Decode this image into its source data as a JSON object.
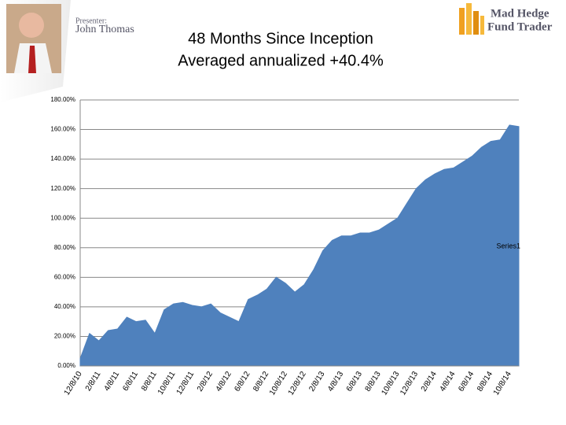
{
  "header": {
    "presenter_label": "Presenter:",
    "presenter_name": "John Thomas",
    "logo_line1": "Mad Hedge",
    "logo_line2": "Fund Trader"
  },
  "chart_data": {
    "type": "area",
    "title": "48 Months Since Inception",
    "subtitle": "Averaged annualized +40.4%",
    "categories": [
      "12/8/10",
      null,
      "2/8/11",
      null,
      "4/8/11",
      null,
      "6/8/11",
      null,
      "8/8/11",
      null,
      "10/8/11",
      null,
      "12/8/11",
      null,
      "2/8/12",
      null,
      "4/8/12",
      null,
      "6/8/12",
      null,
      "8/8/12",
      null,
      "10/8/12",
      null,
      "12/8/12",
      null,
      "2/8/13",
      null,
      "4/8/13",
      null,
      "6/8/13",
      null,
      "8/8/13",
      null,
      "10/8/13",
      null,
      "12/8/13",
      null,
      "2/8/14",
      null,
      "4/8/14",
      null,
      "6/8/14",
      null,
      "8/8/14",
      null,
      "10/8/14",
      null
    ],
    "series": [
      {
        "name": "Series1",
        "color": "#4f81bd",
        "values": [
          5,
          22,
          17,
          24,
          25,
          33,
          30,
          31,
          22,
          38,
          42,
          43,
          41,
          40,
          42,
          36,
          33,
          30,
          45,
          48,
          52,
          60,
          56,
          50,
          55,
          65,
          78,
          85,
          88,
          88,
          90,
          90,
          92,
          96,
          100,
          110,
          120,
          126,
          130,
          133,
          134,
          138,
          142,
          148,
          152,
          153,
          163,
          162
        ]
      }
    ],
    "ylim": [
      0,
      180
    ],
    "yticks": [
      {
        "value": 0,
        "label": "0.00%"
      },
      {
        "value": 20,
        "label": "20.00%"
      },
      {
        "value": 40,
        "label": "40.00%"
      },
      {
        "value": 60,
        "label": "60.00%"
      },
      {
        "value": 80,
        "label": "80.00%"
      },
      {
        "value": 100,
        "label": "100.00%"
      },
      {
        "value": 120,
        "label": "120.00%"
      },
      {
        "value": 140,
        "label": "140.00%"
      },
      {
        "value": 160,
        "label": "160.00%"
      },
      {
        "value": 180,
        "label": "180.00%"
      }
    ],
    "grid": true,
    "legend": "right"
  }
}
